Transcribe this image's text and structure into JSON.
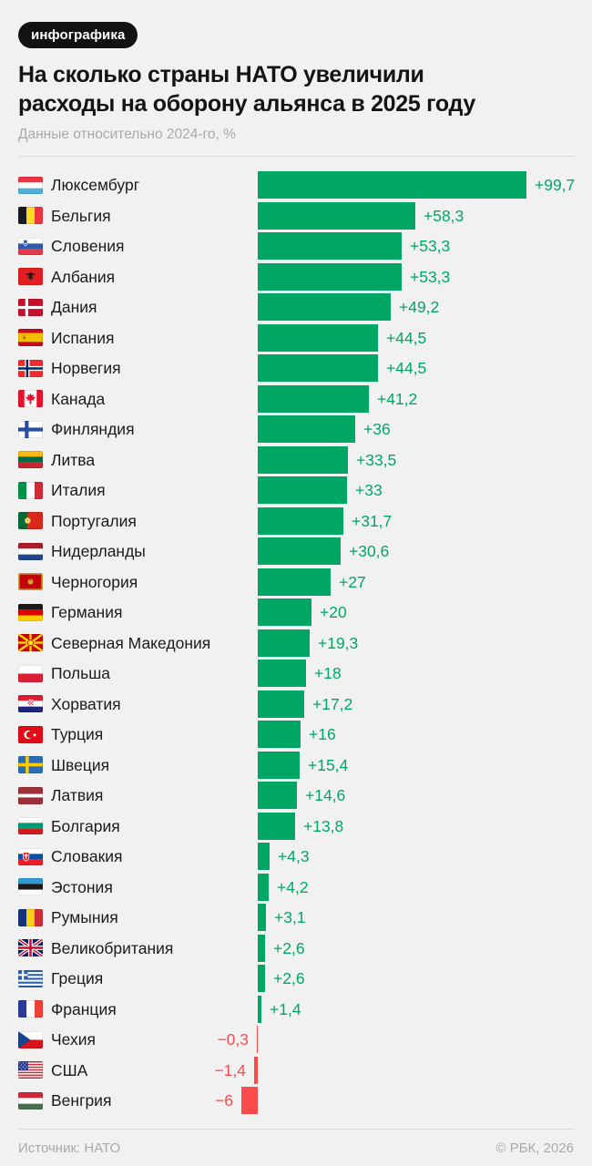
{
  "badge": "инфографика",
  "title_line1": "На сколько страны НАТО увеличили",
  "title_line2": "расходы на оборону альянса в 2025 году",
  "subtitle": "Данные относительно 2024-го, %",
  "footer": {
    "source": "Источник: НАТО",
    "copyright": "© РБК, 2026"
  },
  "colors": {
    "positive": "#00A764",
    "negative": "#FA4B4B",
    "background": "#F1F1F2",
    "badge_bg": "#121212",
    "badge_text": "#FFFFFF",
    "title": "#141414",
    "muted": "#A9A9A9",
    "divider": "#DBDBDB"
  },
  "chart_data": {
    "type": "bar",
    "orientation": "horizontal",
    "title": "На сколько страны НАТО увеличили расходы на оборону альянса в 2025 году",
    "subtitle": "Данные относительно 2024-го, %",
    "unit": "%",
    "xlim": [
      -6,
      99.7
    ],
    "grid": false,
    "legend": false,
    "categories": [
      "Люксембург",
      "Бельгия",
      "Словения",
      "Албания",
      "Дания",
      "Испания",
      "Норвегия",
      "Канада",
      "Финляндия",
      "Литва",
      "Италия",
      "Португалия",
      "Нидерланды",
      "Черногория",
      "Германия",
      "Северная Македония",
      "Польша",
      "Хорватия",
      "Турция",
      "Швеция",
      "Латвия",
      "Болгария",
      "Словакия",
      "Эстония",
      "Румыния",
      "Великобритания",
      "Греция",
      "Франция",
      "Чехия",
      "США",
      "Венгрия"
    ],
    "values": [
      99.7,
      58.3,
      53.3,
      53.3,
      49.2,
      44.5,
      44.5,
      41.2,
      36,
      33.5,
      33,
      31.7,
      30.6,
      27,
      20,
      19.3,
      18,
      17.2,
      16,
      15.4,
      14.6,
      13.8,
      4.3,
      4.2,
      3.1,
      2.6,
      2.6,
      1.4,
      -0.3,
      -1.4,
      -6
    ],
    "value_labels": [
      "+99,7",
      "+58,3",
      "+53,3",
      "+53,3",
      "+49,2",
      "+44,5",
      "+44,5",
      "+41,2",
      "+36",
      "+33,5",
      "+33",
      "+31,7",
      "+30,6",
      "+27",
      "+20",
      "+19,3",
      "+18",
      "+17,2",
      "+16",
      "+15,4",
      "+14,6",
      "+13,8",
      "+4,3",
      "+4,2",
      "+3,1",
      "+2,6",
      "+2,6",
      "+1,4",
      "−0,3",
      "−1,4",
      "−6"
    ],
    "flags": [
      "lu",
      "be",
      "si",
      "al",
      "dk",
      "es",
      "no",
      "ca",
      "fi",
      "lt",
      "it",
      "pt",
      "nl",
      "me",
      "de",
      "mk",
      "pl",
      "hr",
      "tr",
      "se",
      "lv",
      "bg",
      "sk",
      "ee",
      "ro",
      "gb",
      "gr",
      "fr",
      "cz",
      "us",
      "hu"
    ]
  }
}
